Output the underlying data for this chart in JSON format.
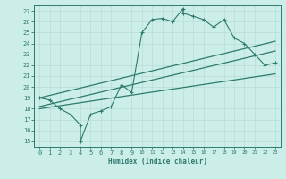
{
  "xlabel": "Humidex (Indice chaleur)",
  "bg_color": "#cceee8",
  "grid_color": "#b8ddd6",
  "line_color": "#2d7a6e",
  "xlim": [
    -0.5,
    23.5
  ],
  "ylim": [
    14.5,
    27.5
  ],
  "xticks": [
    0,
    1,
    2,
    3,
    4,
    5,
    6,
    7,
    8,
    9,
    10,
    11,
    12,
    13,
    14,
    15,
    16,
    17,
    18,
    19,
    20,
    21,
    22,
    23
  ],
  "yticks": [
    15,
    16,
    17,
    18,
    19,
    20,
    21,
    22,
    23,
    24,
    25,
    26,
    27
  ],
  "jagged_x": [
    0,
    1,
    2,
    3,
    4,
    4,
    5,
    6,
    7,
    8,
    9,
    10,
    11,
    12,
    13,
    14,
    14,
    15,
    16,
    17,
    18,
    19,
    20,
    21,
    22,
    23
  ],
  "jagged_y": [
    19,
    18.8,
    18,
    17.5,
    16.5,
    15.0,
    17.5,
    17.8,
    18.2,
    20.2,
    19.5,
    25.0,
    26.2,
    26.3,
    26.0,
    27.2,
    26.8,
    26.5,
    26.2,
    25.5,
    26.2,
    24.5,
    24.0,
    23.0,
    22.0,
    22.2
  ],
  "line1_x": [
    0,
    23
  ],
  "line1_y": [
    19.0,
    24.2
  ],
  "line2_x": [
    0,
    23
  ],
  "line2_y": [
    18.2,
    23.3
  ],
  "line3_x": [
    0,
    23
  ],
  "line3_y": [
    18.0,
    21.2
  ]
}
